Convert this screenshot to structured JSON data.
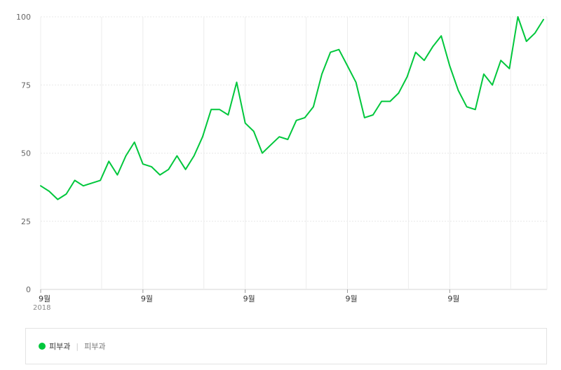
{
  "chart_data": {
    "type": "line",
    "title": "",
    "xlabel": "",
    "ylabel": "",
    "ylim": [
      0,
      100
    ],
    "yticks": [
      "0",
      "25",
      "50",
      "75",
      "100"
    ],
    "xticks": [
      "9월",
      "9월",
      "9월",
      "9월",
      "9월"
    ],
    "year_label": "2018",
    "grid": true,
    "legend_position": "bottom",
    "series": [
      {
        "name": "피부과",
        "color": "#00c73c",
        "values": [
          38,
          36,
          33,
          35,
          40,
          38,
          39,
          40,
          47,
          42,
          49,
          54,
          46,
          45,
          42,
          44,
          49,
          44,
          49,
          56,
          66,
          66,
          64,
          76,
          61,
          58,
          50,
          53,
          56,
          55,
          62,
          63,
          67,
          79,
          87,
          88,
          82,
          76,
          63,
          64,
          69,
          69,
          72,
          78,
          87,
          84,
          89,
          93,
          82,
          73,
          67,
          66,
          79,
          75,
          84,
          81,
          100,
          91,
          94,
          99
        ]
      }
    ]
  },
  "legend": {
    "label": "피부과",
    "sublabel": "피부과",
    "separator": "|",
    "dot_color": "#00c73c"
  }
}
